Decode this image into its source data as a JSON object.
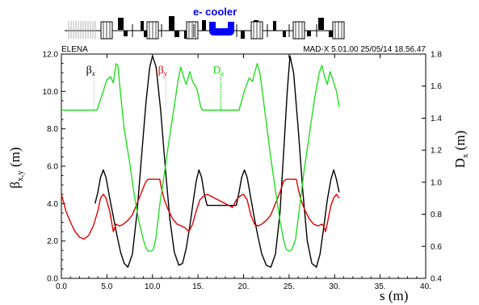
{
  "header": {
    "cooler_label": "e- cooler",
    "machine": "ELENA",
    "program_info": "MAD-X 5.01.00  25/05/14 18.56.47"
  },
  "chart_data": {
    "type": "line",
    "xlabel": "s (m)",
    "ylabel_left": "β",
    "ylabel_left_sub": "x,y",
    "ylabel_left_unit": " (m)",
    "ylabel_right": "D",
    "ylabel_right_sub": "x",
    "ylabel_right_unit": " (m)",
    "xlim": [
      0,
      40
    ],
    "ylim_left": [
      0,
      12
    ],
    "ylim_right": [
      0.4,
      1.8
    ],
    "x_ticks": [
      0,
      5,
      10,
      15,
      20,
      25,
      30,
      35,
      40
    ],
    "x_tick_labels": [
      "0.0",
      "5.0",
      "10.0",
      "15.",
      "20.",
      "25.",
      "30.",
      "35.",
      "40."
    ],
    "y_left_ticks": [
      0,
      2,
      4,
      6,
      8,
      10,
      12
    ],
    "y_left_tick_labels": [
      "0.0",
      "2.0",
      "4.0",
      "6.0",
      "8.0",
      "10.0",
      "12.0"
    ],
    "y_right_ticks": [
      0.4,
      0.6,
      0.8,
      1.0,
      1.2,
      1.4,
      1.6,
      1.8
    ],
    "y_right_tick_labels": [
      "0.4",
      "0.6",
      "0.8",
      "1.0",
      "1.2",
      "1.4",
      "1.6",
      "1.8"
    ],
    "colors": {
      "beta_x": "#000000",
      "beta_y": "#e00000",
      "dx": "#22dd22",
      "cooler": "#0000ff",
      "magnet_gray": "#b0b0b0"
    },
    "series": [
      {
        "name": "βx",
        "name_main": "β",
        "name_sub": "x",
        "axis": "left",
        "x": [
          3.7,
          4.0,
          4.3,
          4.6,
          4.9,
          5.3,
          5.7,
          6.1,
          6.5,
          6.9,
          7.3,
          7.8,
          8.3,
          8.8,
          9.3,
          9.7,
          10.0,
          10.4,
          10.9,
          11.4,
          11.9,
          12.4,
          12.9,
          13.3,
          13.7,
          14.1,
          14.5,
          14.8,
          15.1,
          15.4,
          15.7,
          16.0,
          19.2,
          19.5,
          19.8,
          20.1,
          20.4,
          20.8,
          21.2,
          21.6,
          22.0,
          22.5,
          23.0,
          23.5,
          24.0,
          24.5,
          24.8,
          25.1,
          25.5,
          26.0,
          26.5,
          27.0,
          27.5,
          28.0,
          28.4,
          28.8,
          29.2,
          29.6,
          29.9,
          30.2,
          30.5
        ],
        "y": [
          4.0,
          4.6,
          5.4,
          5.8,
          5.4,
          4.3,
          3.3,
          2.3,
          1.4,
          0.8,
          0.6,
          1.3,
          3.5,
          6.5,
          9.5,
          11.3,
          11.9,
          11.3,
          9.0,
          6.0,
          3.2,
          1.4,
          0.7,
          0.8,
          1.6,
          2.8,
          4.2,
          5.2,
          5.8,
          5.4,
          4.5,
          3.9,
          3.9,
          4.6,
          5.4,
          5.8,
          5.4,
          4.3,
          3.2,
          2.2,
          1.3,
          0.7,
          0.6,
          1.3,
          3.5,
          7.5,
          10.0,
          11.9,
          11.0,
          8.0,
          4.7,
          2.0,
          0.8,
          0.6,
          1.3,
          2.7,
          4.2,
          5.3,
          5.8,
          5.3,
          4.6
        ]
      },
      {
        "name": "βy",
        "name_main": "β",
        "name_sub": "y",
        "axis": "left",
        "x": [
          0.0,
          0.5,
          1.0,
          1.5,
          2.0,
          2.5,
          3.0,
          3.5,
          4.0,
          4.3,
          4.6,
          4.9,
          5.3,
          5.7,
          6.0,
          6.4,
          6.8,
          7.3,
          7.8,
          8.3,
          8.8,
          9.2,
          9.5,
          9.7,
          10.5,
          10.8,
          11.0,
          11.3,
          11.7,
          12.2,
          12.7,
          13.2,
          13.6,
          14.0,
          14.4,
          14.8,
          15.2,
          15.6,
          16.0,
          18.8,
          19.2,
          19.6,
          20.0,
          20.4,
          20.8,
          21.2,
          21.6,
          22.0,
          22.5,
          23.0,
          23.5,
          24.0,
          24.4,
          24.7,
          25.5,
          25.8,
          26.0,
          26.3,
          26.7,
          27.2,
          27.7,
          28.2,
          28.6,
          28.8,
          29.0,
          29.3,
          29.6,
          29.9,
          30.2,
          30.5
        ],
        "y": [
          4.5,
          3.6,
          3.0,
          2.5,
          2.2,
          2.1,
          2.3,
          2.8,
          3.6,
          4.3,
          4.5,
          4.3,
          3.6,
          2.5,
          2.9,
          2.8,
          2.9,
          3.1,
          3.4,
          4.0,
          4.6,
          5.1,
          5.3,
          5.3,
          5.3,
          5.3,
          4.8,
          4.2,
          3.7,
          3.2,
          2.9,
          2.8,
          2.7,
          2.5,
          2.9,
          3.6,
          4.2,
          4.4,
          4.5,
          3.8,
          4.2,
          4.4,
          4.5,
          4.2,
          3.4,
          2.9,
          2.8,
          2.9,
          3.1,
          3.4,
          4.0,
          4.6,
          5.2,
          5.3,
          5.3,
          5.3,
          4.8,
          4.2,
          3.7,
          3.2,
          2.9,
          2.8,
          2.9,
          2.8,
          2.5,
          3.2,
          3.9,
          4.3,
          4.5,
          4.3
        ]
      },
      {
        "name": "Dx",
        "name_main": "D",
        "name_sub": "x",
        "axis": "right",
        "x": [
          0.0,
          3.9,
          4.5,
          5.0,
          5.4,
          5.7,
          6.0,
          6.2,
          6.5,
          6.9,
          7.5,
          8.0,
          8.5,
          9.0,
          9.3,
          9.5,
          9.8,
          10.1,
          10.4,
          10.8,
          11.3,
          11.8,
          12.3,
          12.8,
          13.1,
          13.4,
          13.7,
          14.1,
          14.4,
          14.9,
          15.3,
          15.5,
          19.5,
          20.1,
          20.6,
          21.0,
          21.2,
          21.5,
          21.8,
          22.1,
          22.5,
          23.0,
          23.5,
          24.0,
          24.4,
          24.7,
          25.0,
          25.3,
          25.7,
          26.1,
          26.6,
          27.2,
          27.8,
          28.3,
          28.6,
          28.9,
          29.2,
          29.5,
          29.8,
          30.2,
          30.5
        ],
        "y": [
          1.45,
          1.45,
          1.55,
          1.64,
          1.66,
          1.62,
          1.74,
          1.73,
          1.55,
          1.33,
          1.12,
          0.92,
          0.76,
          0.64,
          0.59,
          0.57,
          0.57,
          0.58,
          0.66,
          0.86,
          1.05,
          1.25,
          1.44,
          1.63,
          1.72,
          1.66,
          1.61,
          1.69,
          1.63,
          1.58,
          1.47,
          1.45,
          1.45,
          1.57,
          1.65,
          1.63,
          1.68,
          1.74,
          1.68,
          1.55,
          1.37,
          1.15,
          0.95,
          0.76,
          0.64,
          0.58,
          0.57,
          0.58,
          0.64,
          0.82,
          1.05,
          1.29,
          1.52,
          1.68,
          1.73,
          1.66,
          1.61,
          1.69,
          1.64,
          1.57,
          1.47
        ]
      }
    ],
    "guide_lines": [
      {
        "series": "βx",
        "x": 3.6
      },
      {
        "series": "βy",
        "x": 11.5
      },
      {
        "series": "Dx",
        "x": 17.5
      }
    ]
  }
}
